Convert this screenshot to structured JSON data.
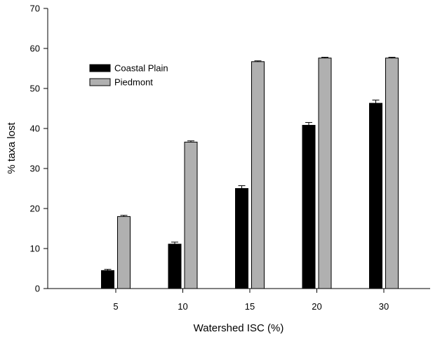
{
  "chart_data": {
    "type": "bar",
    "title": "",
    "xlabel": "Watershed ISC (%)",
    "ylabel": "% taxa lost",
    "categories": [
      "5",
      "10",
      "15",
      "20",
      "30"
    ],
    "ylim": [
      0,
      70
    ],
    "yticks": [
      0,
      10,
      20,
      30,
      40,
      50,
      60,
      70
    ],
    "grid": false,
    "legend_position": "upper-left",
    "series": [
      {
        "name": "Coastal Plain",
        "color": "#000000",
        "values": [
          4.5,
          11.1,
          25.0,
          40.8,
          46.3
        ],
        "errors": [
          0.3,
          0.5,
          0.7,
          0.7,
          0.8
        ]
      },
      {
        "name": "Piedmont",
        "color": "#b0b0b0",
        "values": [
          18.0,
          36.6,
          56.7,
          57.6,
          57.6
        ],
        "errors": [
          0.3,
          0.3,
          0.2,
          0.2,
          0.2
        ]
      }
    ]
  }
}
